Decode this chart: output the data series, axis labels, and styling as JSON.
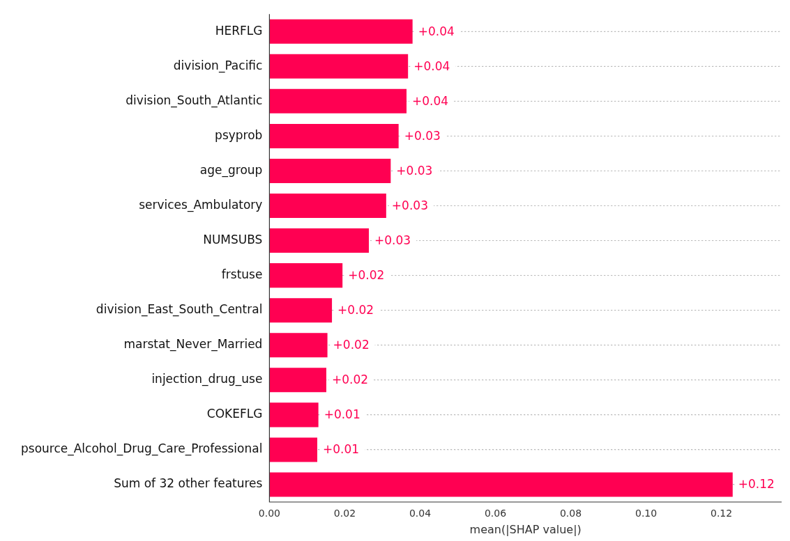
{
  "chart_data": {
    "type": "bar",
    "orientation": "horizontal",
    "xlabel": "mean(|SHAP value|)",
    "categories": [
      "HERFLG",
      "division_Pacific",
      "division_South_Atlantic",
      "psyprob",
      "age_group",
      "services_Ambulatory",
      "NUMSUBS",
      "frstuse",
      "division_East_South_Central",
      "marstat_Never_Married",
      "injection_drug_use",
      "COKEFLG",
      "psource_Alcohol_Drug_Care_Professional",
      "Sum of 32 other features"
    ],
    "values": [
      0.038,
      0.0368,
      0.0364,
      0.0343,
      0.0322,
      0.031,
      0.0264,
      0.0194,
      0.0166,
      0.0154,
      0.0151,
      0.013,
      0.0127,
      0.123
    ],
    "value_labels": [
      "+0.04",
      "+0.04",
      "+0.04",
      "+0.03",
      "+0.03",
      "+0.03",
      "+0.03",
      "+0.02",
      "+0.02",
      "+0.02",
      "+0.02",
      "+0.01",
      "+0.01",
      "+0.12"
    ],
    "color": "#ff0052",
    "xlim": [
      0,
      0.136
    ],
    "xticks": [
      {
        "value": 0,
        "label": "0.00"
      },
      {
        "value": 0.02,
        "label": "0.02"
      },
      {
        "value": 0.04,
        "label": "0.04"
      },
      {
        "value": 0.06,
        "label": "0.06"
      },
      {
        "value": 0.08,
        "label": "0.08"
      },
      {
        "value": 0.1,
        "label": "0.10"
      },
      {
        "value": 0.12,
        "label": "0.12"
      }
    ],
    "grid": "y",
    "legend": false
  }
}
